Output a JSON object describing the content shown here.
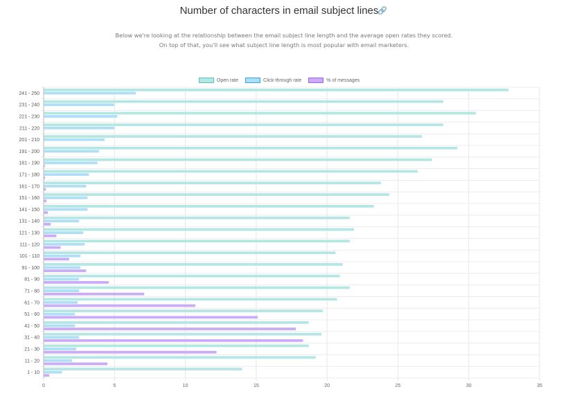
{
  "header": {
    "title": "Number of characters in email subject lines",
    "link_icon": "link-icon",
    "subtitle": "Below we're looking at the relationship between the email subject line length and the average open rates they scored. On top of that, you'll see what subject line length is most popular with email marketers."
  },
  "chart_data": {
    "type": "bar",
    "orientation": "horizontal",
    "categories": [
      "241 - 250",
      "231 - 240",
      "221 - 230",
      "211 - 220",
      "201 - 210",
      "191 - 200",
      "181 - 190",
      "171 - 180",
      "161 - 170",
      "151 - 160",
      "141 - 150",
      "131 - 140",
      "121 - 130",
      "111 - 120",
      "101 - 110",
      "91 - 100",
      "81 - 90",
      "71 - 80",
      "61 - 70",
      "51 - 60",
      "41 - 50",
      "31 - 40",
      "21 - 30",
      "11 - 20",
      "1 - 10"
    ],
    "series": [
      {
        "name": "Open rate",
        "color": "#b4e6e4",
        "border": "#5bc0be",
        "values": [
          32.8,
          28.2,
          30.5,
          28.2,
          26.7,
          29.2,
          27.4,
          26.4,
          23.8,
          24.4,
          23.3,
          21.6,
          21.9,
          21.6,
          20.6,
          21.1,
          20.9,
          21.6,
          20.7,
          19.7,
          18.7,
          19.6,
          18.7,
          19.2,
          14.0
        ]
      },
      {
        "name": "Click-through rate",
        "color": "#b0def6",
        "border": "#36a2eb",
        "values": [
          6.5,
          5.0,
          5.2,
          5.0,
          4.3,
          3.9,
          3.8,
          3.2,
          3.0,
          3.1,
          3.1,
          2.5,
          2.8,
          2.9,
          2.6,
          2.6,
          2.5,
          2.5,
          2.4,
          2.2,
          2.2,
          2.5,
          2.3,
          2.0,
          1.3
        ]
      },
      {
        "name": "% of messages",
        "color": "#c9abf6",
        "border": "#9966ff",
        "values": [
          0.02,
          0.02,
          0.02,
          0.02,
          0.03,
          0.05,
          0.08,
          0.1,
          0.15,
          0.2,
          0.3,
          0.5,
          0.9,
          1.2,
          1.8,
          3.0,
          4.6,
          7.1,
          10.7,
          15.1,
          17.8,
          18.3,
          12.2,
          4.5,
          0.4
        ]
      }
    ],
    "xlim": [
      0,
      35
    ],
    "xticks": [
      "0",
      "5",
      "10",
      "15",
      "20",
      "25",
      "30",
      "35"
    ],
    "grid": true,
    "legend": "top"
  }
}
